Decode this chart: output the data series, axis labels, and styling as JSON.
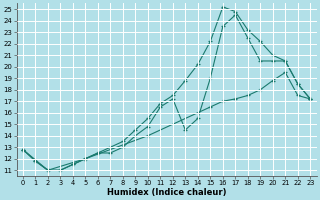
{
  "xlabel": "Humidex (Indice chaleur)",
  "background_color": "#b2e0e8",
  "grid_color": "#c8e8e8",
  "line_color": "#1a7a6e",
  "xlim": [
    -0.5,
    23.5
  ],
  "ylim": [
    10.5,
    25.5
  ],
  "xticks": [
    0,
    1,
    2,
    3,
    4,
    5,
    6,
    7,
    8,
    9,
    10,
    11,
    12,
    13,
    14,
    15,
    16,
    17,
    18,
    19,
    20,
    21,
    22,
    23
  ],
  "yticks": [
    11,
    12,
    13,
    14,
    15,
    16,
    17,
    18,
    19,
    20,
    21,
    22,
    23,
    24,
    25
  ],
  "curve1_x": [
    0,
    1,
    2,
    3,
    4,
    5,
    6,
    7,
    8,
    9,
    10,
    11,
    12,
    13,
    14,
    15,
    16,
    17,
    18,
    19,
    20,
    21,
    22,
    23
  ],
  "curve1_y": [
    12.8,
    11.8,
    11.0,
    11.0,
    11.5,
    12.0,
    12.5,
    13.0,
    13.5,
    14.5,
    15.5,
    16.8,
    17.5,
    18.8,
    20.2,
    22.2,
    25.2,
    24.8,
    23.2,
    22.2,
    21.0,
    20.5,
    18.5,
    17.2
  ],
  "curve2_x": [
    0,
    1,
    2,
    3,
    4,
    5,
    6,
    7,
    8,
    9,
    10,
    11,
    12,
    13,
    14,
    15,
    16,
    17,
    18,
    19,
    20,
    21,
    22,
    23
  ],
  "curve2_y": [
    12.8,
    11.8,
    11.0,
    11.0,
    11.5,
    12.0,
    12.5,
    12.5,
    13.0,
    14.0,
    14.8,
    16.5,
    17.2,
    14.5,
    15.5,
    19.0,
    23.5,
    24.5,
    22.5,
    20.5,
    20.5,
    20.5,
    18.5,
    17.2
  ],
  "curve3_x": [
    0,
    2,
    5,
    10,
    15,
    16,
    17,
    18,
    19,
    20,
    21,
    22,
    23
  ],
  "curve3_y": [
    12.8,
    11.0,
    12.0,
    14.0,
    16.5,
    17.0,
    17.2,
    17.5,
    18.0,
    18.8,
    19.5,
    17.5,
    17.2
  ]
}
